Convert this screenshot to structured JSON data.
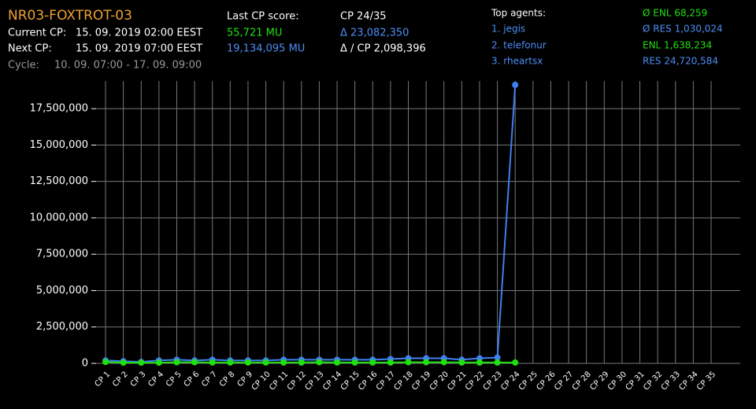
{
  "header": {
    "title": "NR03-FOXTROT-03",
    "current_cp_label": "Current CP:",
    "current_cp": "15. 09. 2019 02:00 EEST",
    "next_cp_label": "Next CP:",
    "next_cp": "15. 09. 2019 07:00 EEST",
    "cycle_label": "Cycle:",
    "cycle": "10. 09. 07:00 - 17. 09. 09:00",
    "last_score_label": "Last CP score:",
    "last_score_enl": "55,721 MU",
    "last_score_res": "19,134,095 MU",
    "cp_progress": "CP 24/35",
    "delta": "Δ 23,082,350",
    "delta_per_cp": "Δ / CP 2,098,396",
    "top_agents_label": "Top agents:",
    "top_agents": [
      "1. jegis",
      "2. telefonur",
      "3. rheartsx"
    ],
    "avg_enl": "Ø ENL 68,259",
    "avg_res": "Ø RES 1,030,024",
    "total_enl": "ENL 1,638,234",
    "total_res": "RES 24,720,584"
  },
  "chart_data": {
    "type": "line",
    "categories": [
      "CP 1",
      "CP 2",
      "CP 3",
      "CP 4",
      "CP 5",
      "CP 6",
      "CP 7",
      "CP 8",
      "CP 9",
      "CP 10",
      "CP 11",
      "CP 12",
      "CP 13",
      "CP 14",
      "CP 15",
      "CP 16",
      "CP 17",
      "CP 18",
      "CP 19",
      "CP 20",
      "CP 21",
      "CP 22",
      "CP 23",
      "CP 24",
      "CP 25",
      "CP 26",
      "CP 27",
      "CP 28",
      "CP 29",
      "CP 30",
      "CP 31",
      "CP 32",
      "CP 33",
      "CP 34",
      "CP 35"
    ],
    "series": [
      {
        "color": "#4080f0",
        "values": [
          200000,
          150000,
          100000,
          200000,
          250000,
          200000,
          250000,
          200000,
          200000,
          200000,
          250000,
          250000,
          250000,
          250000,
          250000,
          250000,
          300000,
          350000,
          350000,
          350000,
          250000,
          350000,
          400000,
          19134095,
          null,
          null,
          null,
          null,
          null,
          null,
          null,
          null,
          null,
          null,
          null
        ]
      },
      {
        "color": "#20e010",
        "values": [
          100000,
          50000,
          50000,
          50000,
          80000,
          80000,
          60000,
          60000,
          60000,
          60000,
          60000,
          60000,
          80000,
          60000,
          60000,
          60000,
          60000,
          80000,
          80000,
          80000,
          60000,
          60000,
          60000,
          55721,
          null,
          null,
          null,
          null,
          null,
          null,
          null,
          null,
          null,
          null,
          null
        ]
      }
    ],
    "ylim": [
      0,
      19400000
    ],
    "yticks": [
      {
        "value": 0,
        "label": "0"
      },
      {
        "value": 2500000,
        "label": "2,500,000"
      },
      {
        "value": 5000000,
        "label": "5,000,000"
      },
      {
        "value": 7500000,
        "label": "7,500,000"
      },
      {
        "value": 10000000,
        "label": "10,000,000"
      },
      {
        "value": 12500000,
        "label": "12,500,000"
      },
      {
        "value": 15000000,
        "label": "15,000,000"
      },
      {
        "value": 17500000,
        "label": "17,500,000"
      }
    ],
    "grid": true
  }
}
